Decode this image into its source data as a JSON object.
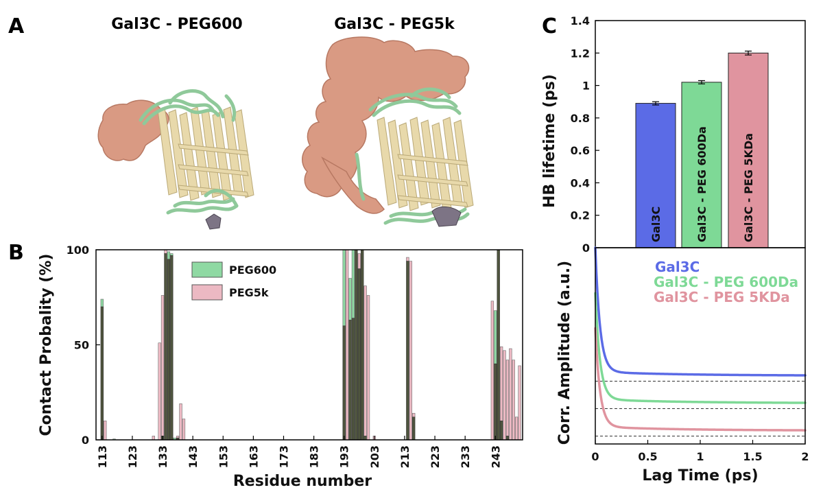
{
  "panels": {
    "a": {
      "letter": "A",
      "titles": [
        "Gal3C - PEG600",
        "Gal3C - PEG5k"
      ]
    },
    "b": {
      "letter": "B"
    },
    "c": {
      "letter": "C"
    }
  },
  "colors": {
    "protein": "#e8d9ab",
    "loops": "#8fc99a",
    "peg": "#d99a83",
    "ligand": "#7d7485",
    "peg600_bar": "#8fd9a3",
    "peg5k_bar": "#ecb9c3",
    "overlap": "#4f553e",
    "gal3c": "#5b6be6",
    "gal3c_peg600": "#7ed996",
    "gal3c_peg5k": "#e0949f"
  },
  "chart_data": [
    {
      "id": "contact",
      "type": "bar",
      "xlabel": "Residue number",
      "ylabel": "Contact Probality (%)",
      "ylim": [
        0,
        100
      ],
      "xlim": [
        111,
        252
      ],
      "xticks": [
        113,
        123,
        133,
        143,
        153,
        163,
        173,
        183,
        193,
        203,
        213,
        223,
        233,
        243
      ],
      "yticks": [
        0,
        50,
        100
      ],
      "legend": "top-left",
      "series": [
        {
          "name": "PEG600",
          "x": [
            113,
            117,
            133,
            134,
            135,
            136,
            137,
            138,
            193,
            195,
            196,
            197,
            198,
            199,
            200,
            214,
            216,
            243,
            244,
            245,
            247
          ],
          "values": [
            74,
            0.5,
            2,
            98,
            99,
            98,
            1,
            1,
            100,
            85,
            100,
            100,
            90,
            100,
            2,
            94,
            12,
            68,
            100,
            10,
            2
          ]
        },
        {
          "name": "PEG5k",
          "x": [
            113,
            114,
            130,
            132,
            133,
            134,
            135,
            136,
            138,
            139,
            140,
            193,
            194,
            195,
            196,
            197,
            198,
            199,
            200,
            201,
            203,
            214,
            215,
            216,
            242,
            243,
            244,
            245,
            246,
            247,
            248,
            249,
            250,
            251
          ],
          "values": [
            70,
            10,
            2,
            51,
            76,
            100,
            95,
            97,
            2,
            19,
            11,
            60,
            100,
            63,
            64,
            100,
            98,
            100,
            81,
            76,
            2,
            96,
            94,
            14,
            73,
            40,
            100,
            49,
            47,
            42,
            48,
            42,
            12,
            39
          ]
        }
      ]
    },
    {
      "id": "hb",
      "type": "bar",
      "ylabel": "HB lifetime (ps)",
      "ylim": [
        0,
        1.4
      ],
      "yticks": [
        "0",
        "0.2",
        "0.4",
        "0.6",
        "0.8",
        "1",
        "1.2",
        "1.4"
      ],
      "categories": [
        "Gal3C",
        "Gal3C - PEG 600Da",
        "Gal3C - PEG 5KDa"
      ],
      "values": [
        0.89,
        1.02,
        1.2
      ],
      "errors": [
        0.01,
        0.01,
        0.012
      ]
    },
    {
      "id": "corr",
      "type": "line",
      "xlabel": "Lag Time (ps)",
      "ylabel": "Corr. Amplitude (a.u.)",
      "xlim": [
        0,
        2
      ],
      "xticks": [
        "0",
        "0.5",
        "1",
        "1.5",
        "2"
      ],
      "series": [
        {
          "name": "Gal3C",
          "plateau": 0.32,
          "offset": 0.65
        },
        {
          "name": "Gal3C - PEG 600Da",
          "plateau": 0.18,
          "offset": 0.56
        },
        {
          "name": "Gal3C - PEG 5KDa",
          "plateau": 0.04,
          "offset": 0.47
        }
      ]
    }
  ]
}
